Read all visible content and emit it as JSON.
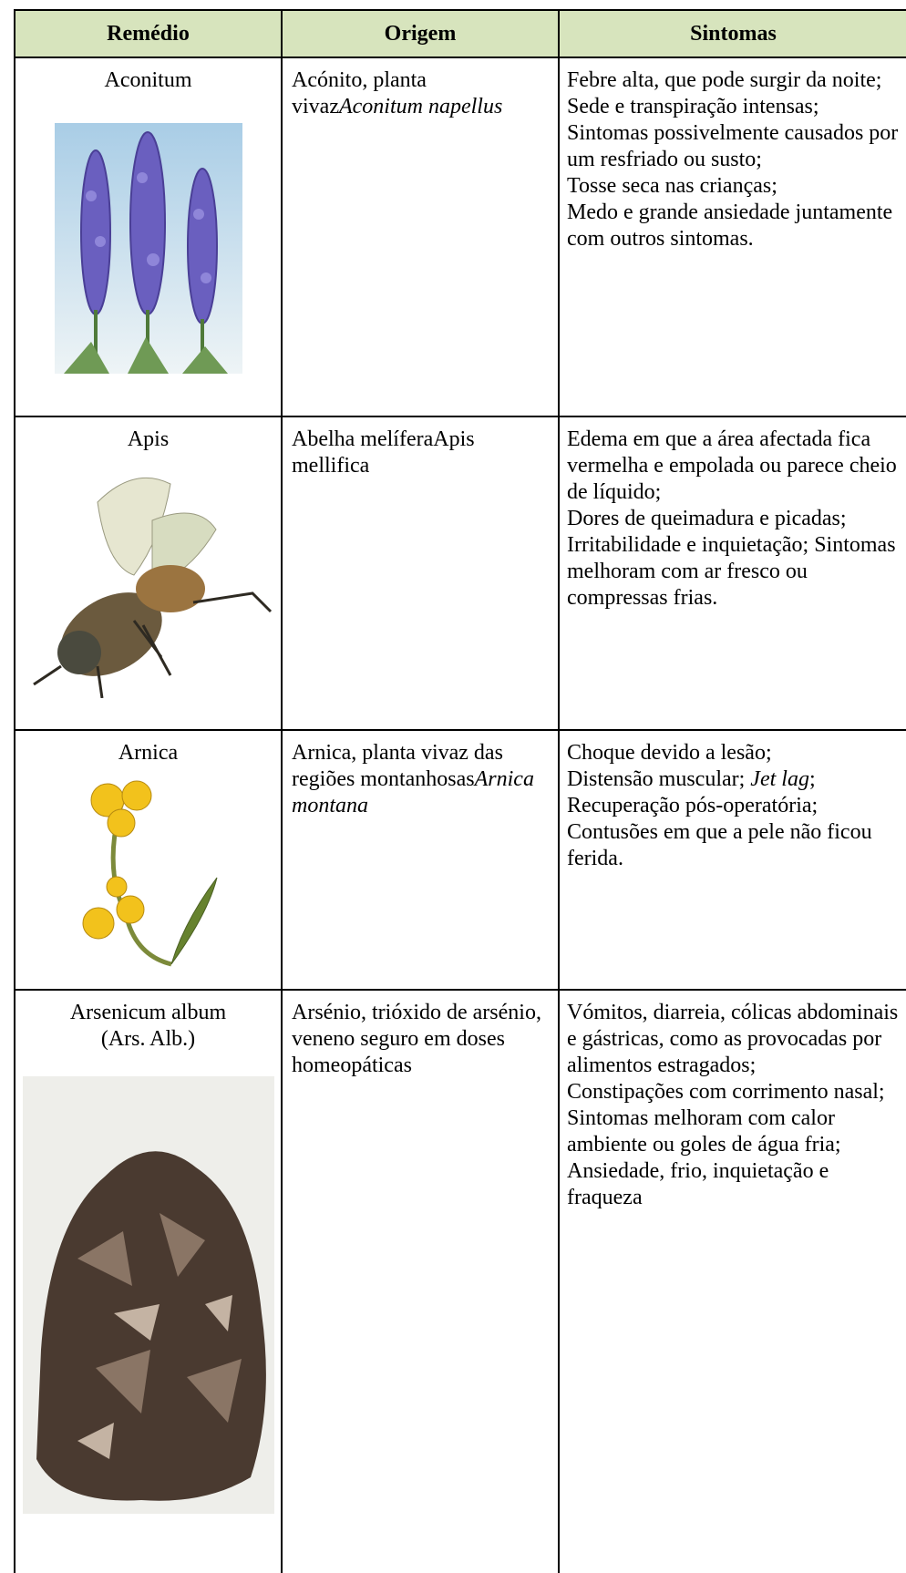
{
  "table": {
    "header": [
      "Remédio",
      "Origem",
      "Sintomas"
    ],
    "rows": [
      {
        "remedy": "Aconitum",
        "origin": {
          "text": "Acónito, planta vivaz",
          "latin": "Aconitum napellus"
        },
        "symptoms": [
          "Febre alta, que pode surgir da noite;",
          "Sede e transpiração intensas;",
          "Sintomas possivelmente causados por um resfriado ou susto;",
          "Tosse seca nas crianças;",
          "Medo e grande ansiedade juntamente com outros sintomas."
        ]
      },
      {
        "remedy": "Apis",
        "origin": {
          "text": "Abelha melíferaApis mellifica"
        },
        "symptoms": [
          "Edema em que a área afectada fica vermelha e empolada ou parece cheio de líquido;",
          "Dores de queimadura e picadas; Irritabilidade e inquietação; Sintomas melhoram com ar fresco ou compressas frias."
        ]
      },
      {
        "remedy": "Arnica",
        "origin": {
          "text": "Arnica, planta vivaz das regiões montanhosas",
          "latin": "Arnica montana"
        },
        "symptoms": [
          "Choque devido a lesão;",
          {
            "before": "Distensão muscular;",
            "italic": "Jet lag",
            "after": ";"
          },
          "Recuperação pós-operatória; Contusões em que a pele não ficou ferida."
        ]
      },
      {
        "remedy": "Arsenicum album",
        "abbreviation": "(Ars. Alb.)",
        "origin": {
          "text": "Arsénio, trióxido de arsénio, veneno seguro em doses homeopáticas"
        },
        "symptoms": [
          "Vómitos, diarreia, cólicas abdominais e gástricas, como as provocadas por alimentos estragados;",
          "Constipações com corrimento nasal;",
          "Sintomas melhoram com calor ambiente ou goles de água fria;",
          "Ansiedade, frio, inquietação e fraqueza"
        ]
      }
    ]
  }
}
